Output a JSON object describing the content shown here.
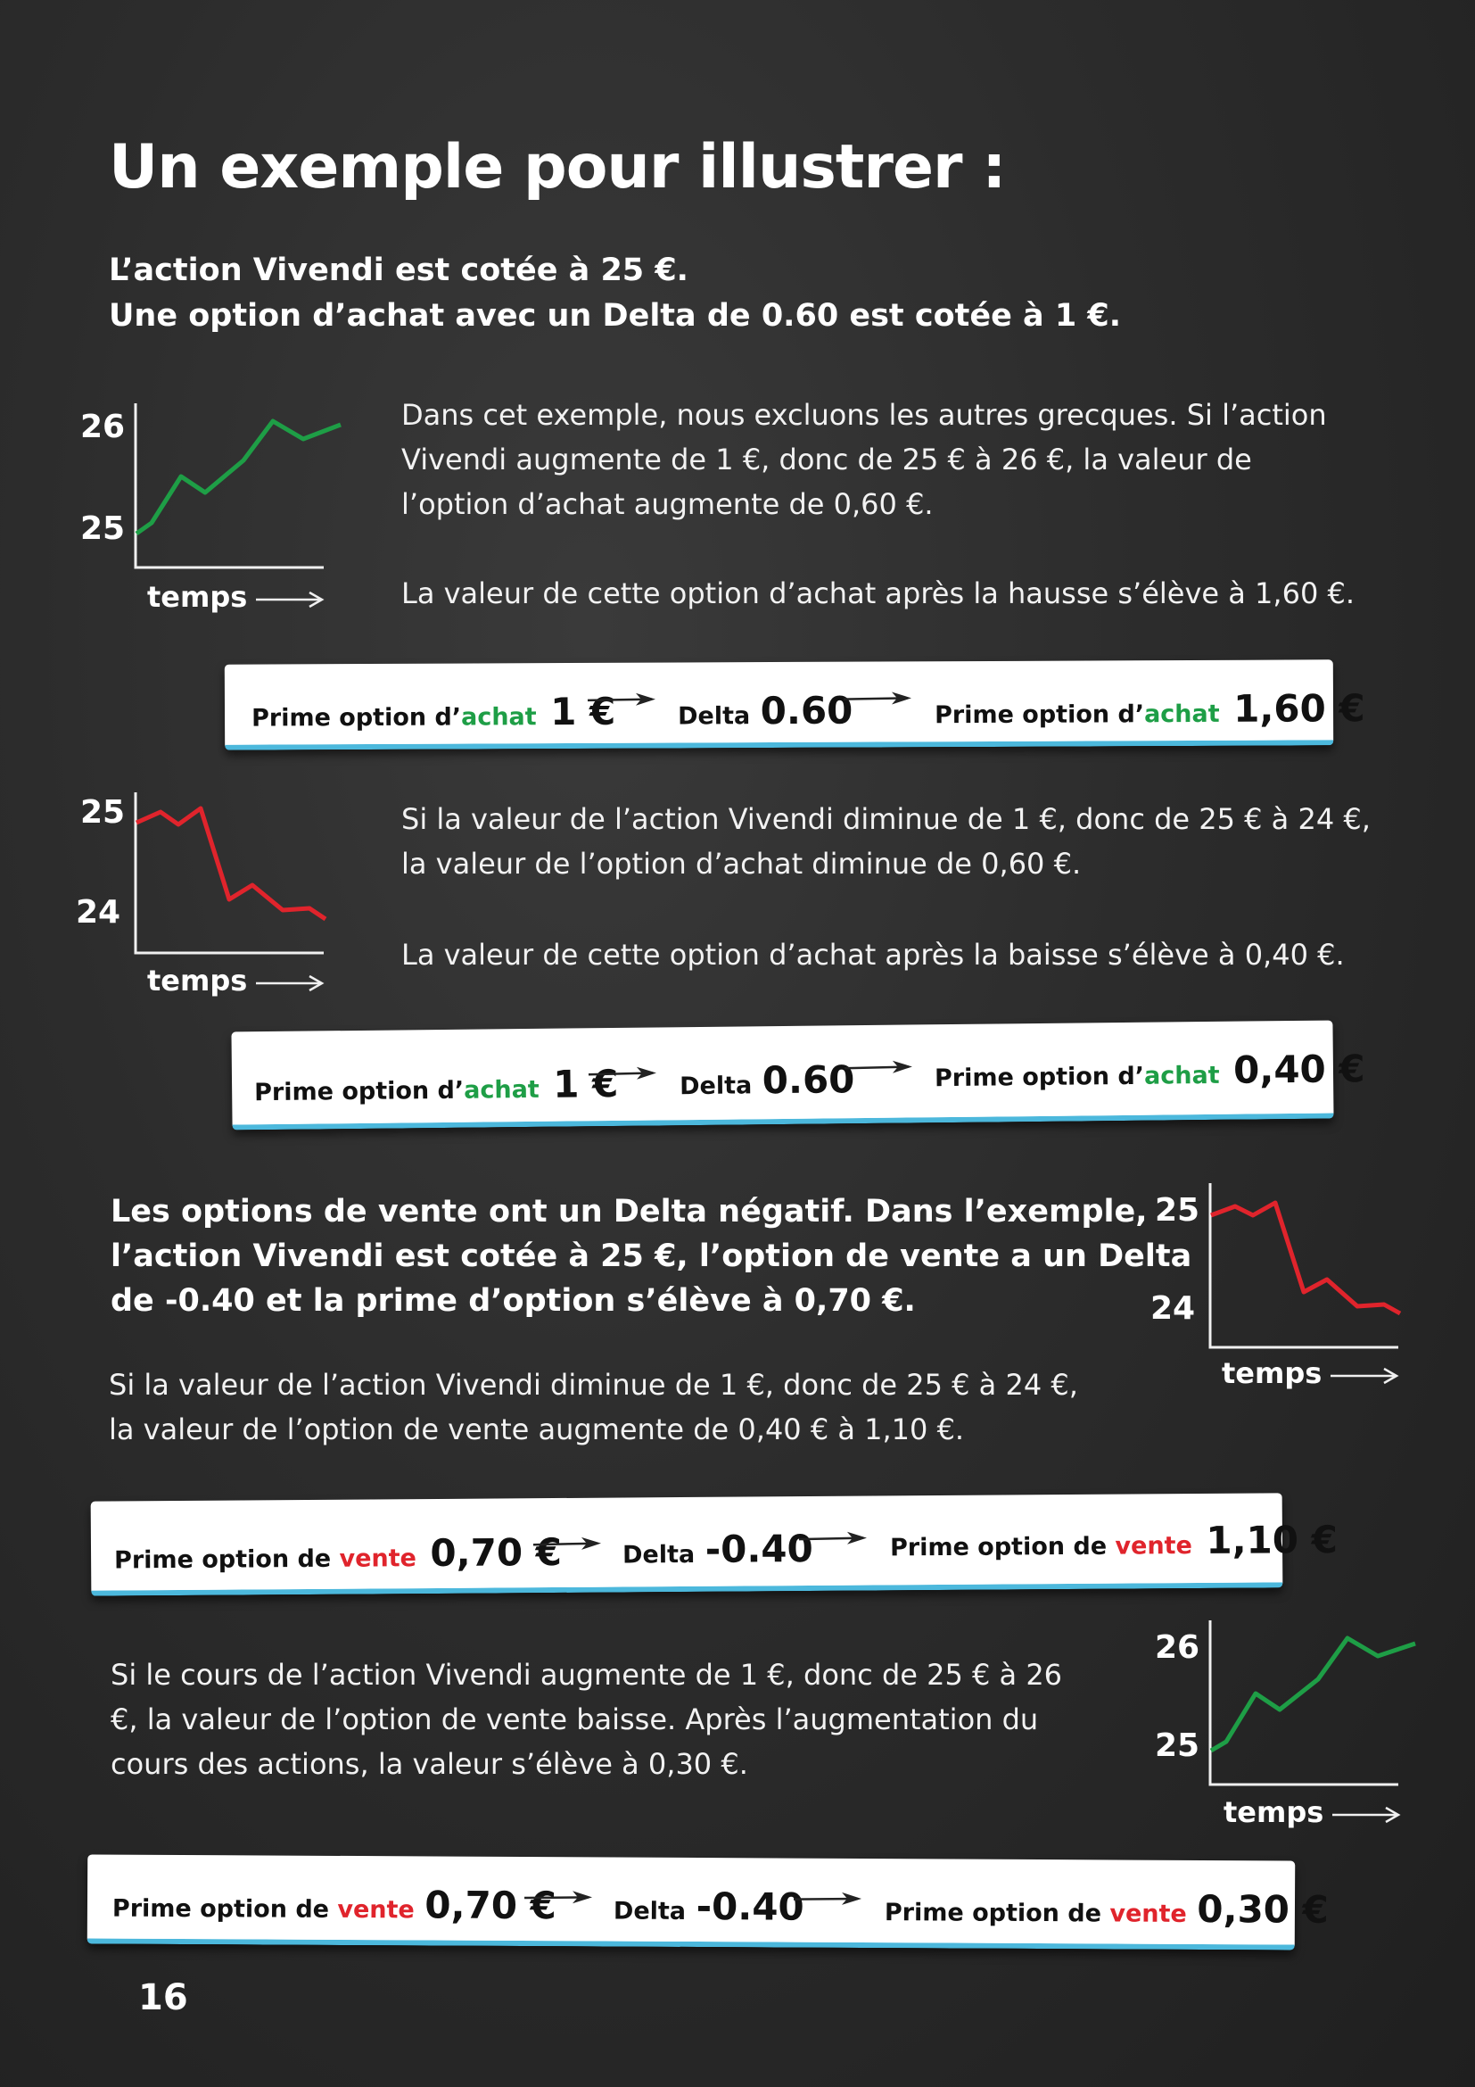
{
  "title": "Un exemple pour illustrer :",
  "intro": {
    "line1": "L’action Vivendi est cotée à 25 €.",
    "line2": "Une option d’achat avec un Delta de 0.60 est cotée à 1 €."
  },
  "section1": {
    "para1": [
      "Dans cet exemple, nous excluons les autres grecques. Si l’action",
      "Vivendi augmente de 1 €, donc de 25 € à 26 €, la valeur de",
      "l’option d’achat augmente de 0,60 €."
    ],
    "para2": "La valeur de cette option d’achat après la hausse s’élève à 1,60 €.",
    "chart": {
      "top_label": "26",
      "bottom_label": "25",
      "axis_label": "temps",
      "trend": "up",
      "color": "#1e9e46"
    }
  },
  "strip1": {
    "label_a": "Prime option d’",
    "accent_a": "achat",
    "value_a": "1 €",
    "delta_label": "Delta",
    "delta_value": "0.60",
    "label_b": "Prime option d’",
    "accent_b": "achat",
    "value_b": "1,60 €"
  },
  "section2": {
    "para1": [
      "Si la valeur de l’action Vivendi diminue de 1 €, donc de 25 € à 24 €,",
      "la valeur de l’option d’achat diminue de 0,60 €."
    ],
    "para2": "La valeur de cette option d’achat après la baisse s’élève à 0,40 €.",
    "chart": {
      "top_label": "25",
      "bottom_label": "24",
      "axis_label": "temps",
      "trend": "down",
      "color": "#e0242c"
    }
  },
  "strip2": {
    "label_a": "Prime option d’",
    "accent_a": "achat",
    "value_a": "1 €",
    "delta_label": "Delta",
    "delta_value": "0.60",
    "label_b": "Prime option d’",
    "accent_b": "achat",
    "value_b": "0,40 €"
  },
  "section3": {
    "bold_lines": [
      "Les options de vente ont un Delta négatif. Dans l’exemple,",
      "l’action Vivendi est cotée à 25 €, l’option de vente a un Delta",
      "de -0.40 et la prime d’option s’élève à 0,70 €."
    ],
    "para": [
      "Si la valeur de l’action Vivendi diminue de 1 €, donc de 25 € à 24 €,",
      "la valeur de l’option de vente augmente de 0,40 € à 1,10 €."
    ],
    "chart": {
      "top_label": "25",
      "bottom_label": "24",
      "axis_label": "temps",
      "trend": "down",
      "color": "#e0242c"
    }
  },
  "strip3": {
    "label_a": "Prime option de ",
    "accent_a": "vente",
    "value_a": "0,70 €",
    "delta_label": "Delta",
    "delta_value": "-0.40",
    "label_b": "Prime option de ",
    "accent_b": "vente",
    "value_b": "1,10 €"
  },
  "section4": {
    "para": [
      "Si le cours de l’action Vivendi augmente de 1 €, donc de 25 € à 26",
      "€, la valeur de l’option de vente baisse. Après l’augmentation du",
      "cours des actions, la valeur s’élève à 0,30 €."
    ],
    "chart": {
      "top_label": "26",
      "bottom_label": "25",
      "axis_label": "temps",
      "trend": "up",
      "color": "#1e9e46"
    }
  },
  "strip4": {
    "label_a": "Prime option de ",
    "accent_a": "vente",
    "value_a": "0,70 €",
    "delta_label": "Delta",
    "delta_value": "-0.40",
    "label_b": "Prime option de ",
    "accent_b": "vente",
    "value_b": "0,30 €"
  },
  "page_number": "16"
}
